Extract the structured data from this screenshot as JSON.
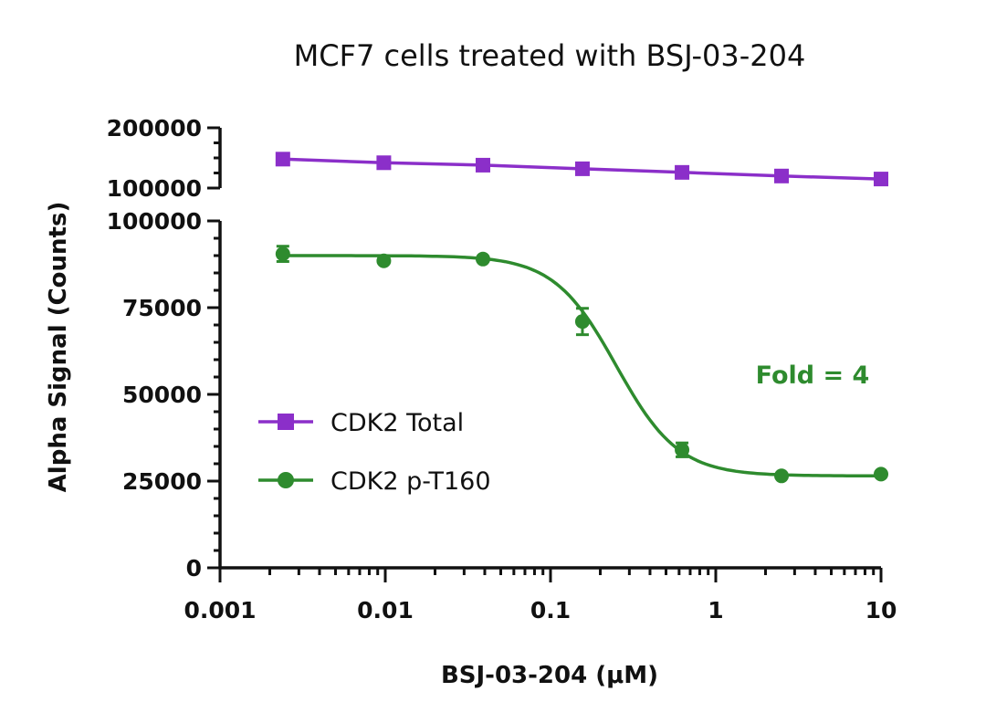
{
  "chart_data": {
    "type": "line",
    "title": "MCF7 cells treated with BSJ-03-204",
    "xlabel": "BSJ-03-204 (μM)",
    "ylabel": "Alpha Signal (Counts)",
    "xscale": "log",
    "xlim": [
      0.001,
      10
    ],
    "x_ticks": [
      0.001,
      0.01,
      0.1,
      1,
      10
    ],
    "x_tick_labels": [
      "0.001",
      "0.01",
      "0.1",
      "1",
      "10"
    ],
    "y_axis_break": true,
    "ylim_lower": [
      0,
      100000
    ],
    "y_ticks_lower": [
      0,
      25000,
      50000,
      75000,
      100000
    ],
    "y_tick_labels_lower": [
      "0",
      "25000",
      "50000",
      "75000",
      "100000"
    ],
    "ylim_upper": [
      100000,
      200000
    ],
    "y_ticks_upper": [
      100000,
      200000
    ],
    "y_tick_labels_upper": [
      "100000",
      "200000"
    ],
    "grid": false,
    "legend_position": "center-left",
    "series": [
      {
        "name": "CDK2 Total",
        "color": "#8b2fc9",
        "marker": "square",
        "x": [
          0.0024,
          0.0098,
          0.039,
          0.156,
          0.625,
          2.5,
          10
        ],
        "y": [
          148000,
          142000,
          138000,
          132000,
          126000,
          120000,
          115000
        ],
        "error": [
          0,
          0,
          0,
          0,
          0,
          0,
          0
        ]
      },
      {
        "name": "CDK2 p-T160",
        "color": "#2e8b2e",
        "marker": "circle",
        "x": [
          0.0024,
          0.0098,
          0.039,
          0.156,
          0.625,
          2.5,
          10
        ],
        "y": [
          90500,
          88500,
          89000,
          71000,
          34000,
          26500,
          27000
        ],
        "error": [
          2200,
          0,
          0,
          3800,
          2000,
          0,
          0
        ],
        "fit": {
          "model": "4PL",
          "top": 90000,
          "bottom": 26500,
          "ic50": 0.25,
          "hill": 2.3
        }
      }
    ],
    "annotations": [
      {
        "text": "Fold = 4",
        "color": "#2e8b2e"
      }
    ]
  }
}
